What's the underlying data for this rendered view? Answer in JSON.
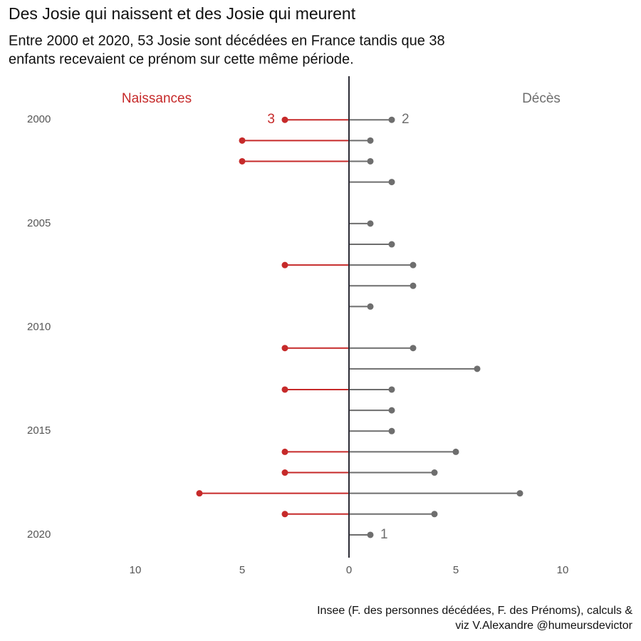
{
  "chart_data": {
    "type": "diverging-lollipop",
    "title": "Des Josie qui naissent et des Josie qui meurent",
    "subtitle": [
      "Entre 2000 et 2020, 53 Josie sont décédées en France tandis que 38",
      "enfants recevaient ce prénom sur cette même période."
    ],
    "caption": [
      "Insee (F. des personnes décédées, F. des Prénoms), calculs &",
      "viz V.Alexandre @humeursdevictor"
    ],
    "categories": [
      2000,
      2001,
      2002,
      2003,
      2004,
      2005,
      2006,
      2007,
      2008,
      2009,
      2010,
      2011,
      2012,
      2013,
      2014,
      2015,
      2016,
      2017,
      2018,
      2019,
      2020
    ],
    "series": [
      {
        "name": "Naissances",
        "color": "#c62a2a",
        "side": "left",
        "values": [
          3,
          5,
          5,
          null,
          null,
          null,
          null,
          3,
          null,
          null,
          null,
          3,
          null,
          3,
          null,
          null,
          3,
          3,
          7,
          3,
          null
        ]
      },
      {
        "name": "Décès",
        "color": "#6e6e6e",
        "side": "right",
        "values": [
          2,
          1,
          1,
          2,
          null,
          1,
          2,
          3,
          3,
          1,
          null,
          3,
          6,
          2,
          2,
          2,
          5,
          4,
          8,
          4,
          1
        ]
      }
    ],
    "xlim": [
      -13.4,
      13.4
    ],
    "xticks": [
      {
        "value": -10,
        "label": "10"
      },
      {
        "value": -5,
        "label": "5"
      },
      0,
      5,
      10
    ],
    "ylim": [
      1997.9,
      2021.1
    ],
    "yticks": [
      2000,
      2005,
      2010,
      2015,
      2020
    ],
    "grid": false
  }
}
